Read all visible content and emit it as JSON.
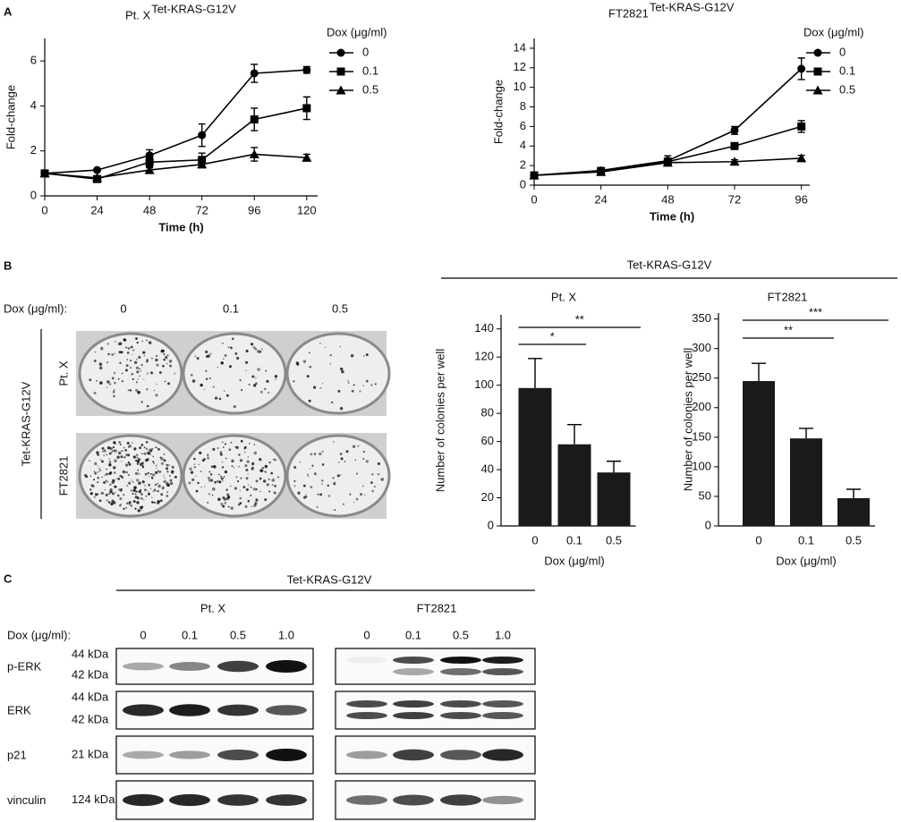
{
  "panel_labels": [
    "A",
    "B",
    "C"
  ],
  "chart_data": [
    {
      "type": "line",
      "title": "Pt. X",
      "title_superscript": "Tet-KRAS-G12V",
      "x_label": "Time (h)",
      "y_label": "Fold-change",
      "legend_title": "Dox (μg/ml)",
      "x": [
        0,
        24,
        48,
        72,
        96,
        120
      ],
      "xlim": [
        0,
        125
      ],
      "xticks": [
        0,
        24,
        48,
        72,
        96,
        120
      ],
      "ylim": [
        0,
        7
      ],
      "yticks": [
        0,
        2,
        4,
        6
      ],
      "series": [
        {
          "name": "0",
          "color": "#000000",
          "marker": "circle",
          "values": [
            1,
            1.15,
            1.8,
            2.7,
            5.45,
            5.6
          ],
          "errors": [
            0,
            0.05,
            0.25,
            0.5,
            0.4,
            0.15
          ]
        },
        {
          "name": "0.1",
          "color": "#000000",
          "marker": "square",
          "values": [
            1,
            0.75,
            1.5,
            1.6,
            3.4,
            3.9
          ],
          "errors": [
            0,
            0.1,
            0.2,
            0.3,
            0.5,
            0.5
          ]
        },
        {
          "name": "0.5",
          "color": "#000000",
          "marker": "triangle",
          "values": [
            1,
            0.8,
            1.15,
            1.4,
            1.85,
            1.7
          ],
          "errors": [
            0,
            0.05,
            0.1,
            0.15,
            0.3,
            0.15
          ]
        }
      ]
    },
    {
      "type": "line",
      "title": "FT2821",
      "title_superscript": "Tet-KRAS-G12V",
      "x_label": "Time (h)",
      "y_label": "Fold-change",
      "legend_title": "Dox (μg/ml)",
      "x": [
        0,
        24,
        48,
        72,
        96
      ],
      "xlim": [
        0,
        99
      ],
      "xticks": [
        0,
        24,
        48,
        72,
        96
      ],
      "ylim": [
        0,
        15
      ],
      "yticks": [
        0,
        2,
        4,
        6,
        8,
        10,
        12,
        14
      ],
      "series": [
        {
          "name": "0",
          "color": "#000000",
          "marker": "circle",
          "values": [
            1,
            1.5,
            2.5,
            5.6,
            11.9
          ],
          "errors": [
            0,
            0.2,
            0.5,
            0.4,
            1.1
          ]
        },
        {
          "name": "0.1",
          "color": "#000000",
          "marker": "square",
          "values": [
            1,
            1.45,
            2.4,
            4,
            6
          ],
          "errors": [
            0,
            0.15,
            0.3,
            0.3,
            0.6
          ]
        },
        {
          "name": "0.5",
          "color": "#000000",
          "marker": "triangle",
          "values": [
            1,
            1.35,
            2.3,
            2.4,
            2.75
          ],
          "errors": [
            0,
            0.1,
            0.2,
            0.2,
            0.3
          ]
        }
      ]
    },
    {
      "type": "bar",
      "title": "Pt. X",
      "x_label": "Dox (μg/ml)",
      "y_label": "Number of colonies per well",
      "categories": [
        "0",
        "0.1",
        "0.5"
      ],
      "values": [
        98,
        58,
        38
      ],
      "errors": [
        21,
        14,
        8
      ],
      "color": "#1a1a1a",
      "ylim": [
        0,
        150
      ],
      "yticks": [
        0,
        20,
        40,
        60,
        80,
        100,
        120,
        140
      ],
      "annotations": [
        "*",
        "**"
      ]
    },
    {
      "type": "bar",
      "title": "FT2821",
      "x_label": "Dox (μg/ml)",
      "y_label": "Number of colonies per well",
      "categories": [
        "0",
        "0.1",
        "0.5"
      ],
      "values": [
        245,
        148,
        47
      ],
      "errors": [
        30,
        17,
        15
      ],
      "color": "#1a1a1a",
      "ylim": [
        0,
        360
      ],
      "yticks": [
        0,
        50,
        100,
        150,
        200,
        250,
        300,
        350
      ],
      "annotations": [
        "**",
        "***"
      ]
    }
  ],
  "colony_quant_header": "Tet-KRAS-G12V",
  "colony_assay": {
    "dose_label": "Dox (μg/ml):",
    "doses": [
      "0",
      "0.1",
      "0.5"
    ],
    "construct": "Tet-KRAS-G12V",
    "rows": [
      "Pt. X",
      "FT2821"
    ]
  },
  "western_blot": {
    "header": "Tet-KRAS-G12V",
    "groups": [
      "Pt. X",
      "FT2821"
    ],
    "dose_label": "Dox (μg/ml):",
    "doses": [
      "0",
      "0.1",
      "0.5",
      "1.0"
    ],
    "rows": [
      {
        "name": "p-ERK",
        "markers": [
          "44 kDa",
          "42 kDa"
        ]
      },
      {
        "name": "ERK",
        "markers": [
          "44 kDa",
          "42 kDa"
        ]
      },
      {
        "name": "p21",
        "markers": [
          "21 kDa"
        ]
      },
      {
        "name": "vinculin",
        "markers": [
          "124 kDa"
        ]
      }
    ]
  }
}
